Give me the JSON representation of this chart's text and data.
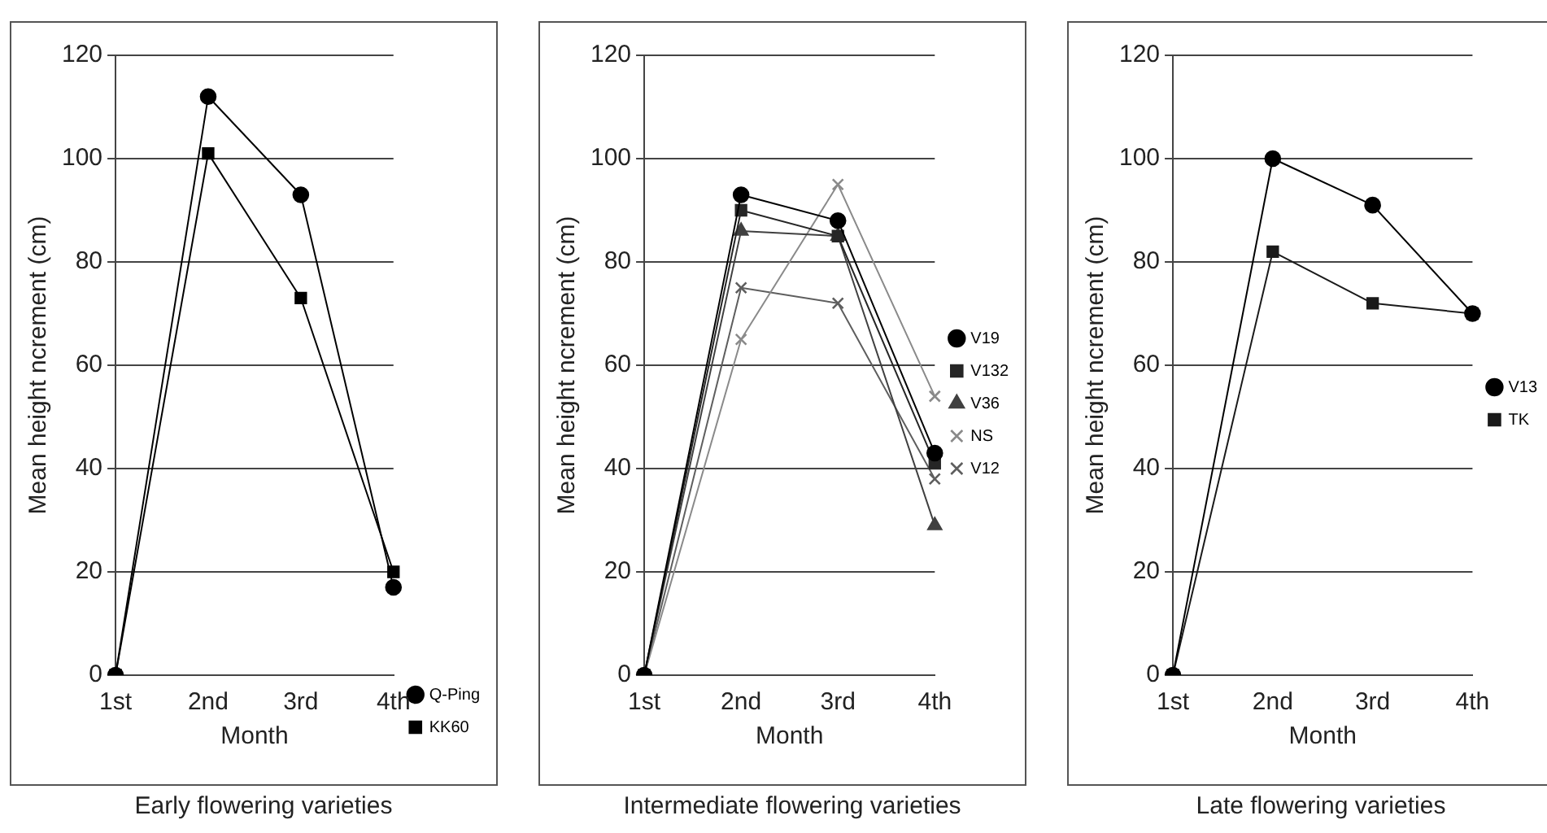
{
  "chart_data": [
    {
      "type": "line",
      "title": "Early flowering varieties",
      "xlabel": "Month",
      "ylabel": "Mean height ncrement (cm)",
      "categories": [
        "1st",
        "2nd",
        "3rd",
        "4th"
      ],
      "ylim": [
        0,
        120
      ],
      "yticks": [
        0,
        20,
        40,
        60,
        80,
        100,
        120
      ],
      "grid": "y",
      "legend": "bottom right",
      "series": [
        {
          "name": "Q-Ping",
          "color": "#000000",
          "marker": "circle",
          "values": [
            0,
            112,
            93,
            17
          ]
        },
        {
          "name": "KK60",
          "color": "#000000",
          "marker": "square",
          "values": [
            0,
            101,
            73,
            20
          ]
        }
      ]
    },
    {
      "type": "line",
      "title": "Intermediate flowering varieties",
      "xlabel": "Month",
      "ylabel": "Mean height ncrement (cm)",
      "categories": [
        "1st",
        "2nd",
        "3rd",
        "4th"
      ],
      "ylim": [
        0,
        120
      ],
      "yticks": [
        0,
        20,
        40,
        60,
        80,
        100,
        120
      ],
      "grid": "y",
      "legend": "right",
      "series": [
        {
          "name": "V19",
          "color": "#000000",
          "marker": "circle",
          "values": [
            0,
            93,
            88,
            43
          ]
        },
        {
          "name": "V132",
          "color": "#262626",
          "marker": "square",
          "values": [
            0,
            90,
            85,
            41
          ]
        },
        {
          "name": "V36",
          "color": "#404040",
          "marker": "triangle",
          "values": [
            0,
            86,
            85,
            29
          ]
        },
        {
          "name": "NS",
          "color": "#8a8a8a",
          "marker": "cross",
          "values": [
            0,
            65,
            95,
            54
          ]
        },
        {
          "name": "V12",
          "color": "#5e5e5e",
          "marker": "cross",
          "values": [
            0,
            75,
            72,
            38
          ]
        }
      ]
    },
    {
      "type": "line",
      "title": "Late flowering varieties",
      "xlabel": "Month",
      "ylabel": "Mean height ncrement (cm)",
      "categories": [
        "1st",
        "2nd",
        "3rd",
        "4th"
      ],
      "ylim": [
        0,
        120
      ],
      "yticks": [
        0,
        20,
        40,
        60,
        80,
        100,
        120
      ],
      "grid": "y",
      "legend": "right",
      "series": [
        {
          "name": "V13",
          "color": "#000000",
          "marker": "circle",
          "values": [
            0,
            100,
            91,
            70
          ]
        },
        {
          "name": "TK",
          "color": "#1a1a1a",
          "marker": "square",
          "values": [
            0,
            82,
            72,
            70
          ]
        }
      ]
    }
  ]
}
